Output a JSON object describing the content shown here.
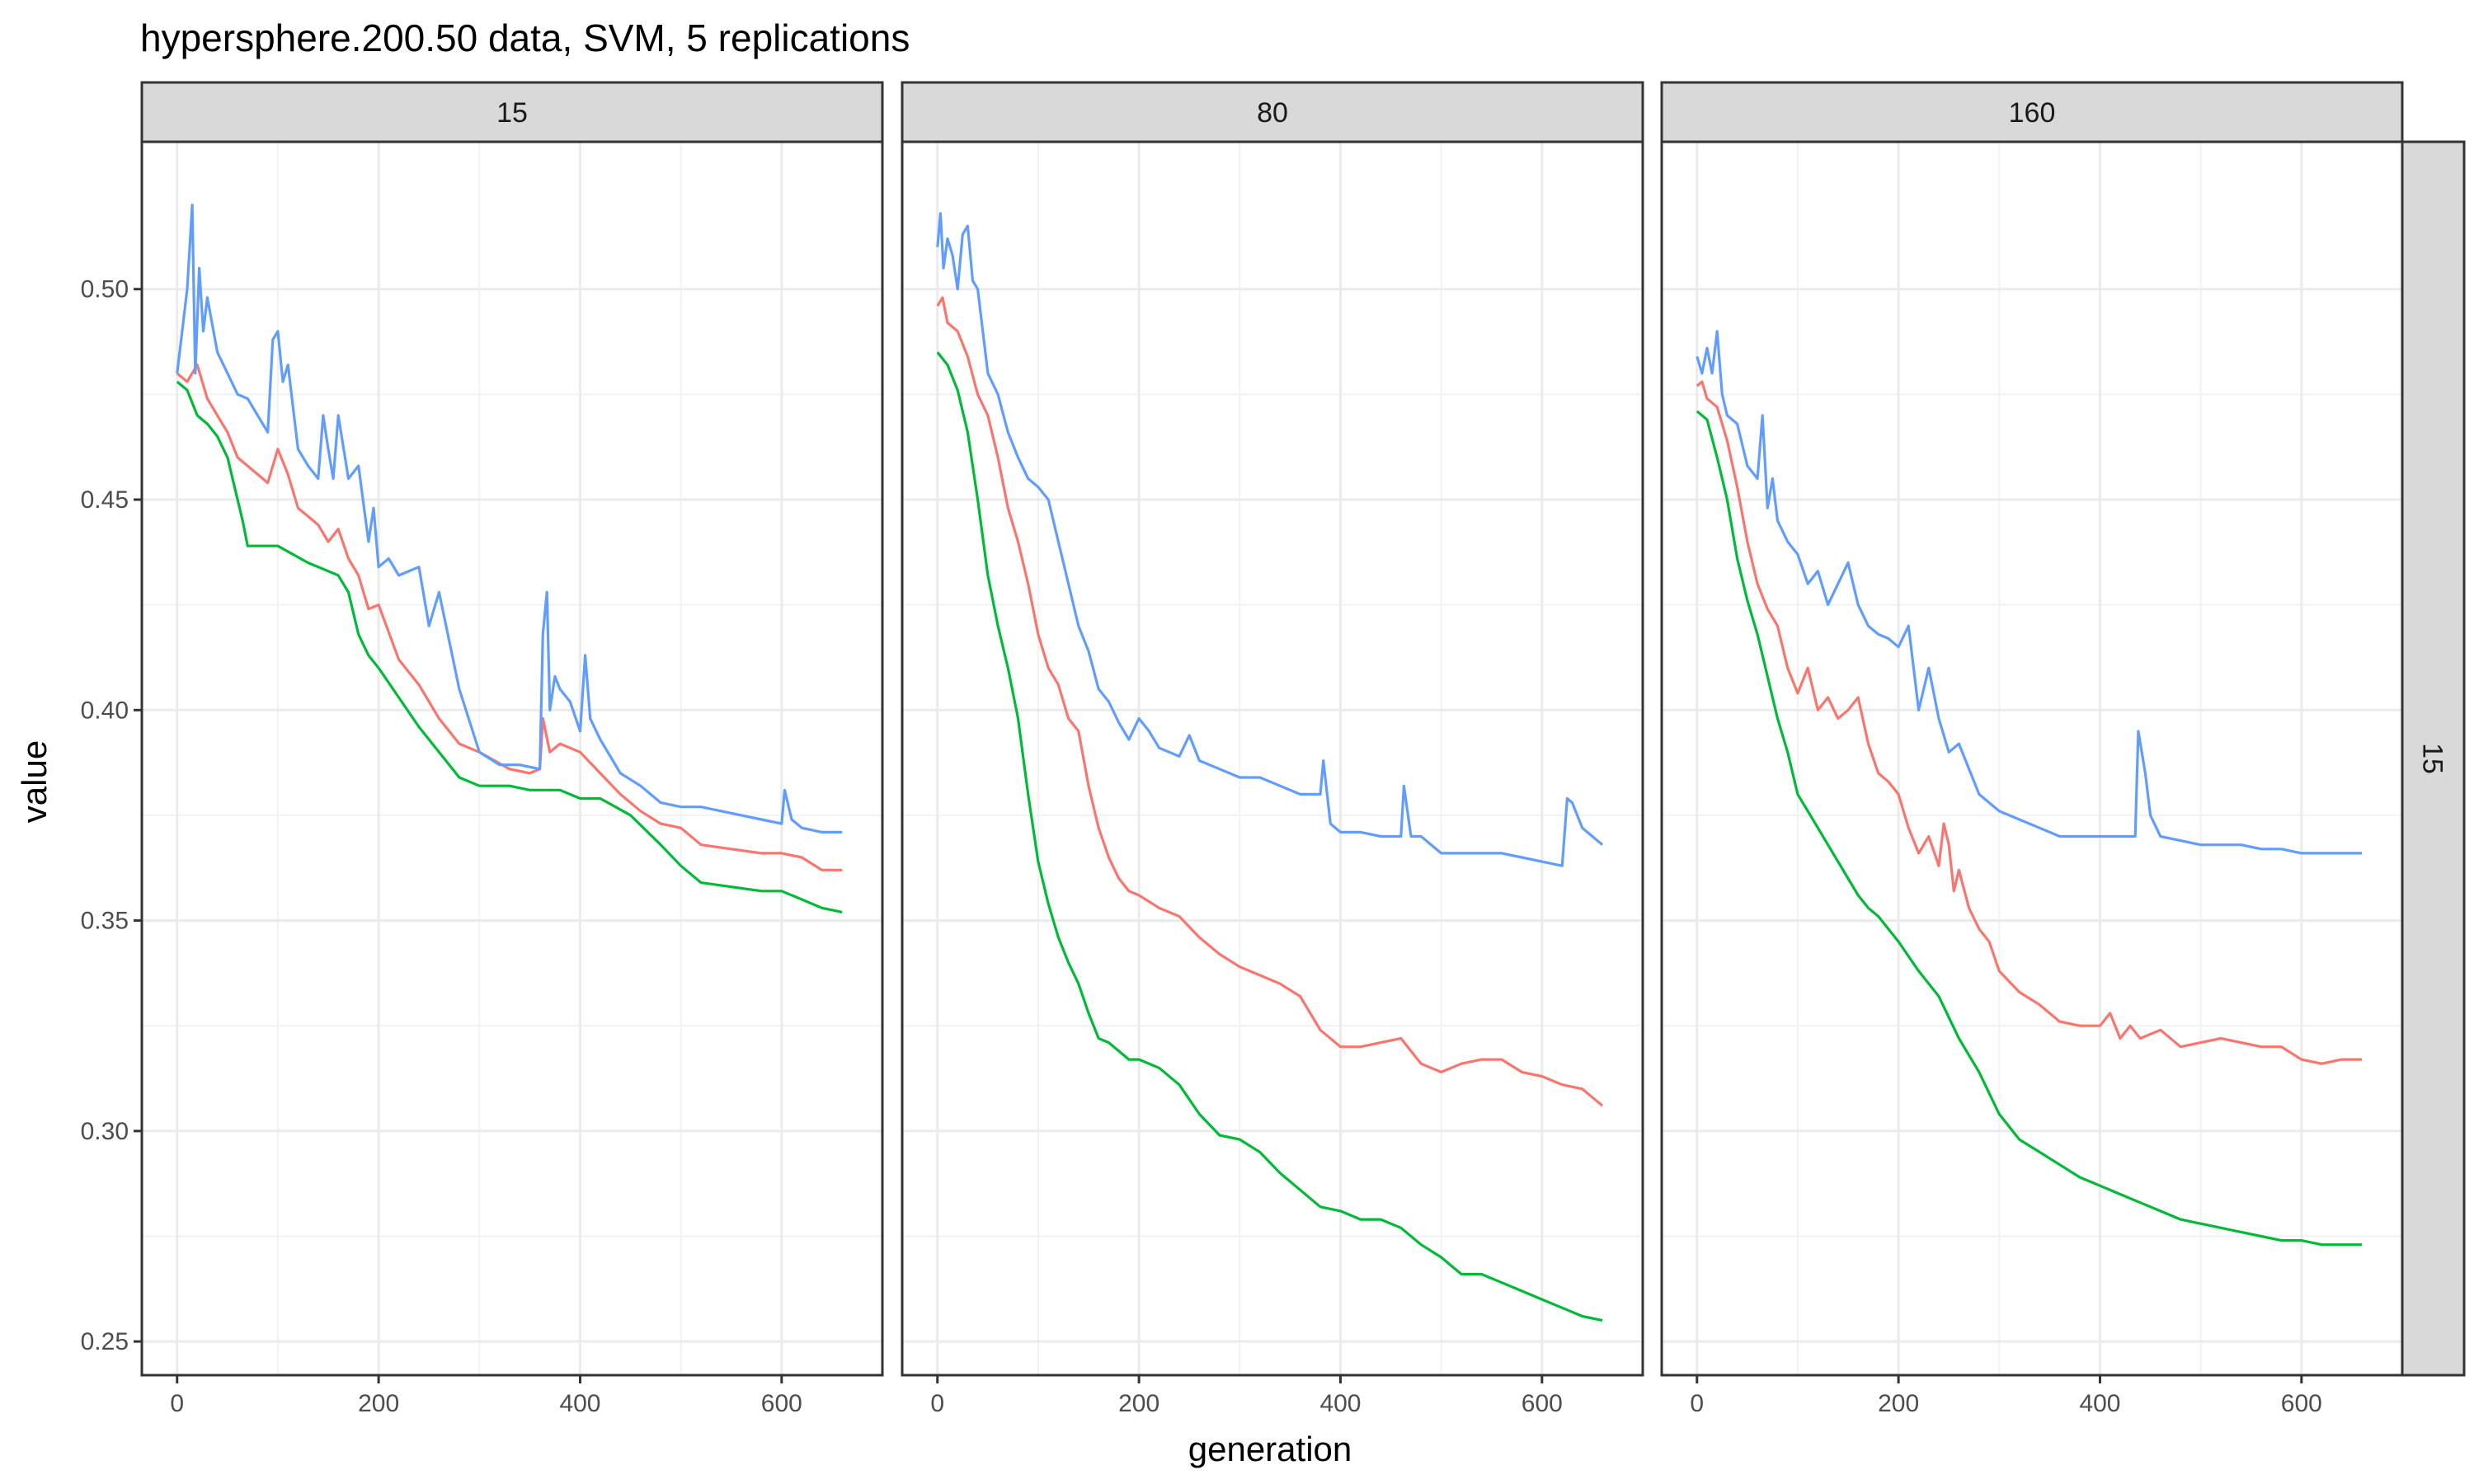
{
  "chart_data": {
    "type": "line",
    "title": "hypersphere.200.50 data, SVM, 5 replications",
    "xlabel": "generation",
    "ylabel": "value",
    "xlim": [
      -35,
      700
    ],
    "ylim": [
      0.242,
      0.535
    ],
    "x_ticks": [
      0,
      200,
      400,
      600
    ],
    "x_tick_labels": [
      "0",
      "200",
      "400",
      "600"
    ],
    "y_ticks": [
      0.25,
      0.3,
      0.35,
      0.4,
      0.45,
      0.5
    ],
    "y_tick_labels": [
      "0.25",
      "0.30",
      "0.35",
      "0.40",
      "0.45",
      "0.50"
    ],
    "grid": true,
    "legend": "none",
    "row_strip": "15",
    "series_colors": [
      "#F8766D",
      "#00BA38",
      "#619CFF"
    ],
    "panels": [
      {
        "strip": "15",
        "series": [
          {
            "color": "#F8766D",
            "x": [
              0,
              10,
              20,
              30,
              40,
              50,
              60,
              70,
              80,
              90,
              100,
              110,
              120,
              130,
              140,
              150,
              160,
              170,
              180,
              190,
              200,
              220,
              240,
              260,
              280,
              300,
              330,
              350,
              360,
              363,
              370,
              380,
              400,
              420,
              440,
              460,
              480,
              500,
              520,
              550,
              580,
              600,
              620,
              640,
              660
            ],
            "y": [
              0.48,
              0.478,
              0.482,
              0.474,
              0.47,
              0.466,
              0.46,
              0.458,
              0.456,
              0.454,
              0.462,
              0.456,
              0.448,
              0.446,
              0.444,
              0.44,
              0.443,
              0.436,
              0.432,
              0.424,
              0.425,
              0.412,
              0.406,
              0.398,
              0.392,
              0.39,
              0.386,
              0.385,
              0.386,
              0.398,
              0.39,
              0.392,
              0.39,
              0.385,
              0.38,
              0.376,
              0.373,
              0.372,
              0.368,
              0.367,
              0.366,
              0.366,
              0.365,
              0.362,
              0.362
            ]
          },
          {
            "color": "#00BA38",
            "x": [
              0,
              10,
              20,
              30,
              40,
              50,
              60,
              65,
              70,
              100,
              130,
              160,
              170,
              180,
              190,
              200,
              220,
              240,
              260,
              280,
              300,
              330,
              350,
              380,
              400,
              420,
              450,
              480,
              500,
              520,
              550,
              580,
              600,
              620,
              640,
              660
            ],
            "y": [
              0.478,
              0.476,
              0.47,
              0.468,
              0.465,
              0.46,
              0.45,
              0.445,
              0.439,
              0.439,
              0.435,
              0.432,
              0.428,
              0.418,
              0.413,
              0.41,
              0.403,
              0.396,
              0.39,
              0.384,
              0.382,
              0.382,
              0.381,
              0.381,
              0.379,
              0.379,
              0.375,
              0.368,
              0.363,
              0.359,
              0.358,
              0.357,
              0.357,
              0.355,
              0.353,
              0.352
            ]
          },
          {
            "color": "#619CFF",
            "x": [
              0,
              5,
              10,
              15,
              18,
              22,
              26,
              30,
              40,
              50,
              60,
              70,
              80,
              90,
              95,
              100,
              105,
              110,
              120,
              130,
              140,
              145,
              150,
              155,
              160,
              170,
              180,
              190,
              195,
              200,
              210,
              220,
              240,
              250,
              260,
              280,
              300,
              320,
              340,
              360,
              363,
              367,
              370,
              375,
              380,
              390,
              400,
              405,
              410,
              420,
              440,
              460,
              480,
              500,
              520,
              540,
              560,
              580,
              600,
              603,
              610,
              620,
              640,
              660
            ],
            "y": [
              0.48,
              0.49,
              0.5,
              0.52,
              0.48,
              0.505,
              0.49,
              0.498,
              0.485,
              0.48,
              0.475,
              0.474,
              0.47,
              0.466,
              0.488,
              0.49,
              0.478,
              0.482,
              0.462,
              0.458,
              0.455,
              0.47,
              0.462,
              0.455,
              0.47,
              0.455,
              0.458,
              0.44,
              0.448,
              0.434,
              0.436,
              0.432,
              0.434,
              0.42,
              0.428,
              0.405,
              0.39,
              0.387,
              0.387,
              0.386,
              0.418,
              0.428,
              0.4,
              0.408,
              0.405,
              0.402,
              0.395,
              0.413,
              0.398,
              0.393,
              0.385,
              0.382,
              0.378,
              0.377,
              0.377,
              0.376,
              0.375,
              0.374,
              0.373,
              0.381,
              0.374,
              0.372,
              0.371,
              0.371
            ]
          }
        ]
      },
      {
        "strip": "80",
        "series": [
          {
            "color": "#F8766D",
            "x": [
              0,
              5,
              10,
              20,
              30,
              40,
              50,
              60,
              70,
              80,
              90,
              100,
              110,
              120,
              130,
              140,
              150,
              160,
              170,
              180,
              190,
              200,
              220,
              240,
              260,
              280,
              300,
              320,
              340,
              360,
              380,
              400,
              420,
              440,
              460,
              480,
              500,
              520,
              540,
              560,
              580,
              600,
              620,
              640,
              660
            ],
            "y": [
              0.496,
              0.498,
              0.492,
              0.49,
              0.484,
              0.475,
              0.47,
              0.46,
              0.448,
              0.44,
              0.43,
              0.418,
              0.41,
              0.406,
              0.398,
              0.395,
              0.382,
              0.372,
              0.365,
              0.36,
              0.357,
              0.356,
              0.353,
              0.351,
              0.346,
              0.342,
              0.339,
              0.337,
              0.335,
              0.332,
              0.324,
              0.32,
              0.32,
              0.321,
              0.322,
              0.316,
              0.314,
              0.316,
              0.317,
              0.317,
              0.314,
              0.313,
              0.311,
              0.31,
              0.306
            ]
          },
          {
            "color": "#00BA38",
            "x": [
              0,
              10,
              20,
              30,
              40,
              50,
              60,
              70,
              80,
              90,
              100,
              110,
              120,
              130,
              140,
              150,
              160,
              170,
              180,
              190,
              200,
              220,
              240,
              260,
              280,
              300,
              320,
              340,
              360,
              380,
              400,
              420,
              440,
              460,
              480,
              500,
              520,
              540,
              560,
              580,
              600,
              620,
              640,
              660
            ],
            "y": [
              0.485,
              0.482,
              0.476,
              0.466,
              0.45,
              0.432,
              0.42,
              0.41,
              0.398,
              0.38,
              0.364,
              0.354,
              0.346,
              0.34,
              0.335,
              0.328,
              0.322,
              0.321,
              0.319,
              0.317,
              0.317,
              0.315,
              0.311,
              0.304,
              0.299,
              0.298,
              0.295,
              0.29,
              0.286,
              0.282,
              0.281,
              0.279,
              0.279,
              0.277,
              0.273,
              0.27,
              0.266,
              0.266,
              0.264,
              0.262,
              0.26,
              0.258,
              0.256,
              0.255
            ]
          },
          {
            "color": "#619CFF",
            "x": [
              0,
              3,
              6,
              10,
              15,
              20,
              25,
              30,
              35,
              40,
              50,
              60,
              70,
              80,
              90,
              100,
              110,
              120,
              130,
              140,
              150,
              160,
              170,
              180,
              190,
              200,
              210,
              220,
              240,
              250,
              260,
              280,
              300,
              320,
              340,
              360,
              380,
              383,
              390,
              400,
              420,
              440,
              460,
              463,
              470,
              480,
              500,
              520,
              540,
              560,
              580,
              600,
              620,
              625,
              630,
              640,
              650,
              660
            ],
            "y": [
              0.51,
              0.518,
              0.505,
              0.512,
              0.508,
              0.5,
              0.513,
              0.515,
              0.502,
              0.5,
              0.48,
              0.475,
              0.466,
              0.46,
              0.455,
              0.453,
              0.45,
              0.44,
              0.43,
              0.42,
              0.414,
              0.405,
              0.402,
              0.397,
              0.393,
              0.398,
              0.395,
              0.391,
              0.389,
              0.394,
              0.388,
              0.386,
              0.384,
              0.384,
              0.382,
              0.38,
              0.38,
              0.388,
              0.373,
              0.371,
              0.371,
              0.37,
              0.37,
              0.382,
              0.37,
              0.37,
              0.366,
              0.366,
              0.366,
              0.366,
              0.365,
              0.364,
              0.363,
              0.379,
              0.378,
              0.372,
              0.37,
              0.368
            ]
          }
        ]
      },
      {
        "strip": "160",
        "series": [
          {
            "color": "#F8766D",
            "x": [
              0,
              5,
              10,
              20,
              30,
              40,
              50,
              60,
              70,
              80,
              90,
              100,
              110,
              120,
              130,
              140,
              150,
              160,
              170,
              180,
              190,
              200,
              210,
              220,
              230,
              240,
              245,
              250,
              255,
              260,
              270,
              280,
              290,
              300,
              320,
              340,
              360,
              380,
              400,
              410,
              420,
              430,
              440,
              460,
              480,
              500,
              520,
              540,
              560,
              580,
              600,
              620,
              640,
              660
            ],
            "y": [
              0.477,
              0.478,
              0.474,
              0.472,
              0.464,
              0.453,
              0.44,
              0.43,
              0.424,
              0.42,
              0.41,
              0.404,
              0.41,
              0.4,
              0.403,
              0.398,
              0.4,
              0.403,
              0.392,
              0.385,
              0.383,
              0.38,
              0.372,
              0.366,
              0.37,
              0.363,
              0.373,
              0.368,
              0.357,
              0.362,
              0.353,
              0.348,
              0.345,
              0.338,
              0.333,
              0.33,
              0.326,
              0.325,
              0.325,
              0.328,
              0.322,
              0.325,
              0.322,
              0.324,
              0.32,
              0.321,
              0.322,
              0.321,
              0.32,
              0.32,
              0.317,
              0.316,
              0.317,
              0.317
            ]
          },
          {
            "color": "#00BA38",
            "x": [
              0,
              10,
              20,
              30,
              40,
              50,
              60,
              70,
              80,
              90,
              100,
              110,
              120,
              130,
              140,
              150,
              160,
              170,
              180,
              190,
              200,
              220,
              240,
              260,
              280,
              300,
              320,
              340,
              360,
              380,
              400,
              420,
              440,
              460,
              480,
              500,
              520,
              540,
              560,
              580,
              600,
              620,
              640,
              660
            ],
            "y": [
              0.471,
              0.469,
              0.46,
              0.45,
              0.436,
              0.426,
              0.418,
              0.408,
              0.398,
              0.39,
              0.38,
              0.376,
              0.372,
              0.368,
              0.364,
              0.36,
              0.356,
              0.353,
              0.351,
              0.348,
              0.345,
              0.338,
              0.332,
              0.322,
              0.314,
              0.304,
              0.298,
              0.295,
              0.292,
              0.289,
              0.287,
              0.285,
              0.283,
              0.281,
              0.279,
              0.278,
              0.277,
              0.276,
              0.275,
              0.274,
              0.274,
              0.273,
              0.273,
              0.273
            ]
          },
          {
            "color": "#619CFF",
            "x": [
              0,
              5,
              10,
              15,
              20,
              25,
              30,
              40,
              50,
              60,
              65,
              70,
              75,
              80,
              90,
              100,
              110,
              120,
              130,
              140,
              150,
              160,
              170,
              180,
              190,
              200,
              210,
              220,
              230,
              240,
              250,
              260,
              280,
              300,
              320,
              340,
              360,
              380,
              400,
              420,
              435,
              438,
              445,
              450,
              460,
              480,
              500,
              520,
              540,
              560,
              580,
              600,
              620,
              640,
              660
            ],
            "y": [
              0.484,
              0.48,
              0.486,
              0.48,
              0.49,
              0.475,
              0.47,
              0.468,
              0.458,
              0.455,
              0.47,
              0.448,
              0.455,
              0.445,
              0.44,
              0.437,
              0.43,
              0.433,
              0.425,
              0.43,
              0.435,
              0.425,
              0.42,
              0.418,
              0.417,
              0.415,
              0.42,
              0.4,
              0.41,
              0.398,
              0.39,
              0.392,
              0.38,
              0.376,
              0.374,
              0.372,
              0.37,
              0.37,
              0.37,
              0.37,
              0.37,
              0.395,
              0.385,
              0.375,
              0.37,
              0.369,
              0.368,
              0.368,
              0.368,
              0.367,
              0.367,
              0.366,
              0.366,
              0.366,
              0.366
            ]
          }
        ]
      }
    ]
  }
}
